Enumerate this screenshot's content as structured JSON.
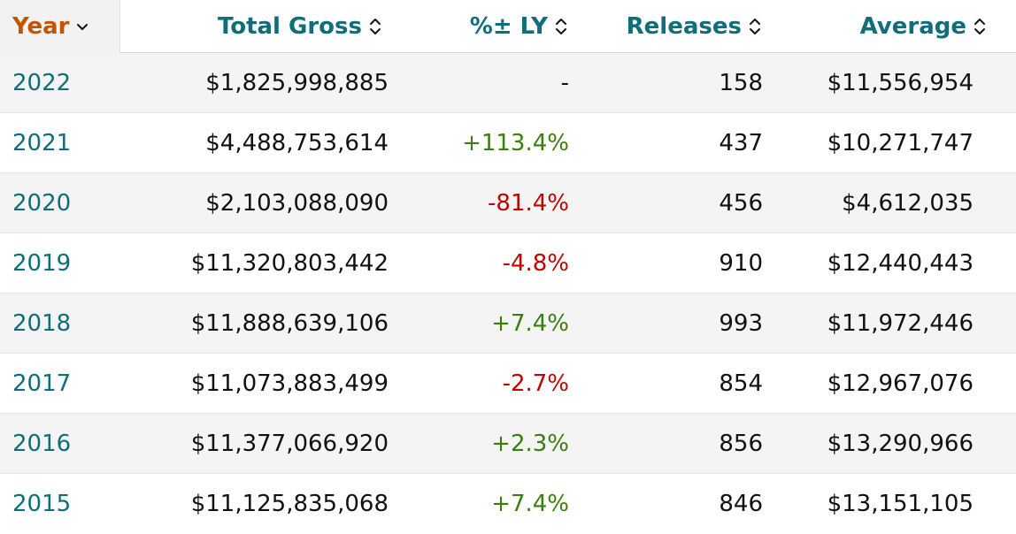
{
  "columns": {
    "year": "Year",
    "gross": "Total Gross",
    "pct": "%± LY",
    "releases": "Releases",
    "average": "Average"
  },
  "icons": {
    "year_sort": "chevron-down-icon",
    "sort": "sort-updown-icon"
  },
  "colors": {
    "link": "#0f6e7a",
    "active_sort": "#c45500",
    "positive": "#3a7f0b",
    "negative": "#c40000"
  },
  "rows": [
    {
      "year": "2022",
      "gross": "$1,825,998,885",
      "pct": "-",
      "trend": "flat",
      "releases": "158",
      "average": "$11,556,954"
    },
    {
      "year": "2021",
      "gross": "$4,488,753,614",
      "pct": "+113.4%",
      "trend": "up",
      "releases": "437",
      "average": "$10,271,747"
    },
    {
      "year": "2020",
      "gross": "$2,103,088,090",
      "pct": "-81.4%",
      "trend": "down",
      "releases": "456",
      "average": "$4,612,035"
    },
    {
      "year": "2019",
      "gross": "$11,320,803,442",
      "pct": "-4.8%",
      "trend": "down",
      "releases": "910",
      "average": "$12,440,443"
    },
    {
      "year": "2018",
      "gross": "$11,888,639,106",
      "pct": "+7.4%",
      "trend": "up",
      "releases": "993",
      "average": "$11,972,446"
    },
    {
      "year": "2017",
      "gross": "$11,073,883,499",
      "pct": "-2.7%",
      "trend": "down",
      "releases": "854",
      "average": "$12,967,076"
    },
    {
      "year": "2016",
      "gross": "$11,377,066,920",
      "pct": "+2.3%",
      "trend": "up",
      "releases": "856",
      "average": "$13,290,966"
    },
    {
      "year": "2015",
      "gross": "$11,125,835,068",
      "pct": "+7.4%",
      "trend": "up",
      "releases": "846",
      "average": "$13,151,105"
    }
  ]
}
